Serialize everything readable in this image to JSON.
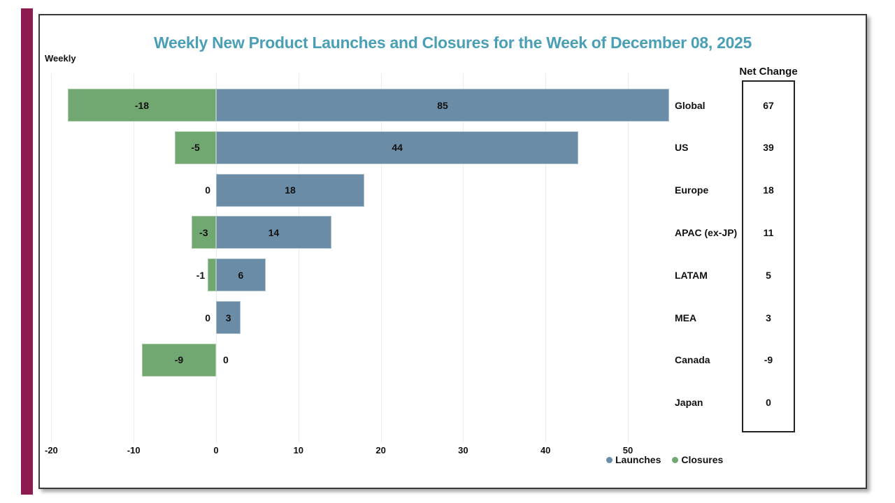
{
  "page": {
    "title": "Weekly New Product Launches and Closures for the Week of December 08, 2025",
    "corner_label": "Weekly",
    "title_color": "#4a9fb5",
    "accent_bar_color": "#8e1a52"
  },
  "net_change_panel": {
    "header": "Net Change"
  },
  "legend": [
    {
      "label": "Launches",
      "color": "#6b8ca6"
    },
    {
      "label": "Closures",
      "color": "#71a872"
    }
  ],
  "chart_data": {
    "type": "bar",
    "orientation": "horizontal",
    "title": "Weekly New Product Launches and Closures for the Week of December 08, 2025",
    "categories": [
      "Global",
      "US",
      "Europe",
      "APAC (ex-JP)",
      "LATAM",
      "MEA",
      "Canada",
      "Japan"
    ],
    "series": [
      {
        "name": "Launches",
        "color": "#6b8ca6",
        "values": [
          85,
          44,
          18,
          14,
          6,
          3,
          0,
          null
        ]
      },
      {
        "name": "Closures",
        "color": "#71a872",
        "values": [
          -18,
          -5,
          0,
          -3,
          -1,
          0,
          -9,
          null
        ]
      }
    ],
    "net_change": {
      "label": "Net Change",
      "values": [
        67,
        39,
        18,
        11,
        5,
        3,
        -9,
        0
      ]
    },
    "x_axis": {
      "ticks": [
        -20,
        -10,
        0,
        10,
        20,
        30,
        40,
        50
      ],
      "min": -20.8,
      "max": 55
    },
    "grid": true,
    "legend_position": "bottom-right",
    "notes": "Global launches bar (85) is clipped at the right edge of the plot area; Japan row shows no bars or in-plot labels."
  }
}
